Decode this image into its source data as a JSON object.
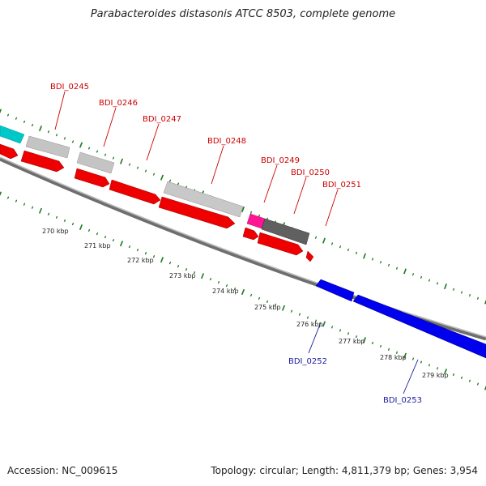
{
  "title": "Parabacteroides distasonis ATCC 8503, complete genome",
  "accession": "Accession: NC_009615",
  "summary": "Topology: circular; Length: 4,811,379 bp; Genes: 3,954",
  "colors": {
    "forward_gene": "#ff0000",
    "reverse_gene": "#0000ff",
    "label_forward": "#cc0000",
    "label_reverse": "#1a1aa0",
    "gc_ticks": "#1a7a1a",
    "backbone": "#808080",
    "rna": "#00c8c8",
    "pseudo": "#ff1493",
    "hypothetical_gray": "#c0c0c0",
    "dark_gray": "#606060"
  },
  "kbp_labels": [
    "270 kbp",
    "271 kbp",
    "272 kbp",
    "273 kbp",
    "274 kbp",
    "275 kbp",
    "276 kbp",
    "277 kbp",
    "278 kbp",
    "279 kbp"
  ],
  "gene_labels": [
    {
      "text": "BDI_0245",
      "strand": "forward"
    },
    {
      "text": "BDI_0246",
      "strand": "forward"
    },
    {
      "text": "BDI_0247",
      "strand": "forward"
    },
    {
      "text": "BDI_0248",
      "strand": "forward"
    },
    {
      "text": "BDI_0249",
      "strand": "forward"
    },
    {
      "text": "BDI_0250",
      "strand": "forward"
    },
    {
      "text": "BDI_0251",
      "strand": "forward"
    },
    {
      "text": "BDI_0252",
      "strand": "reverse"
    },
    {
      "text": "BDI_0253",
      "strand": "reverse"
    }
  ]
}
